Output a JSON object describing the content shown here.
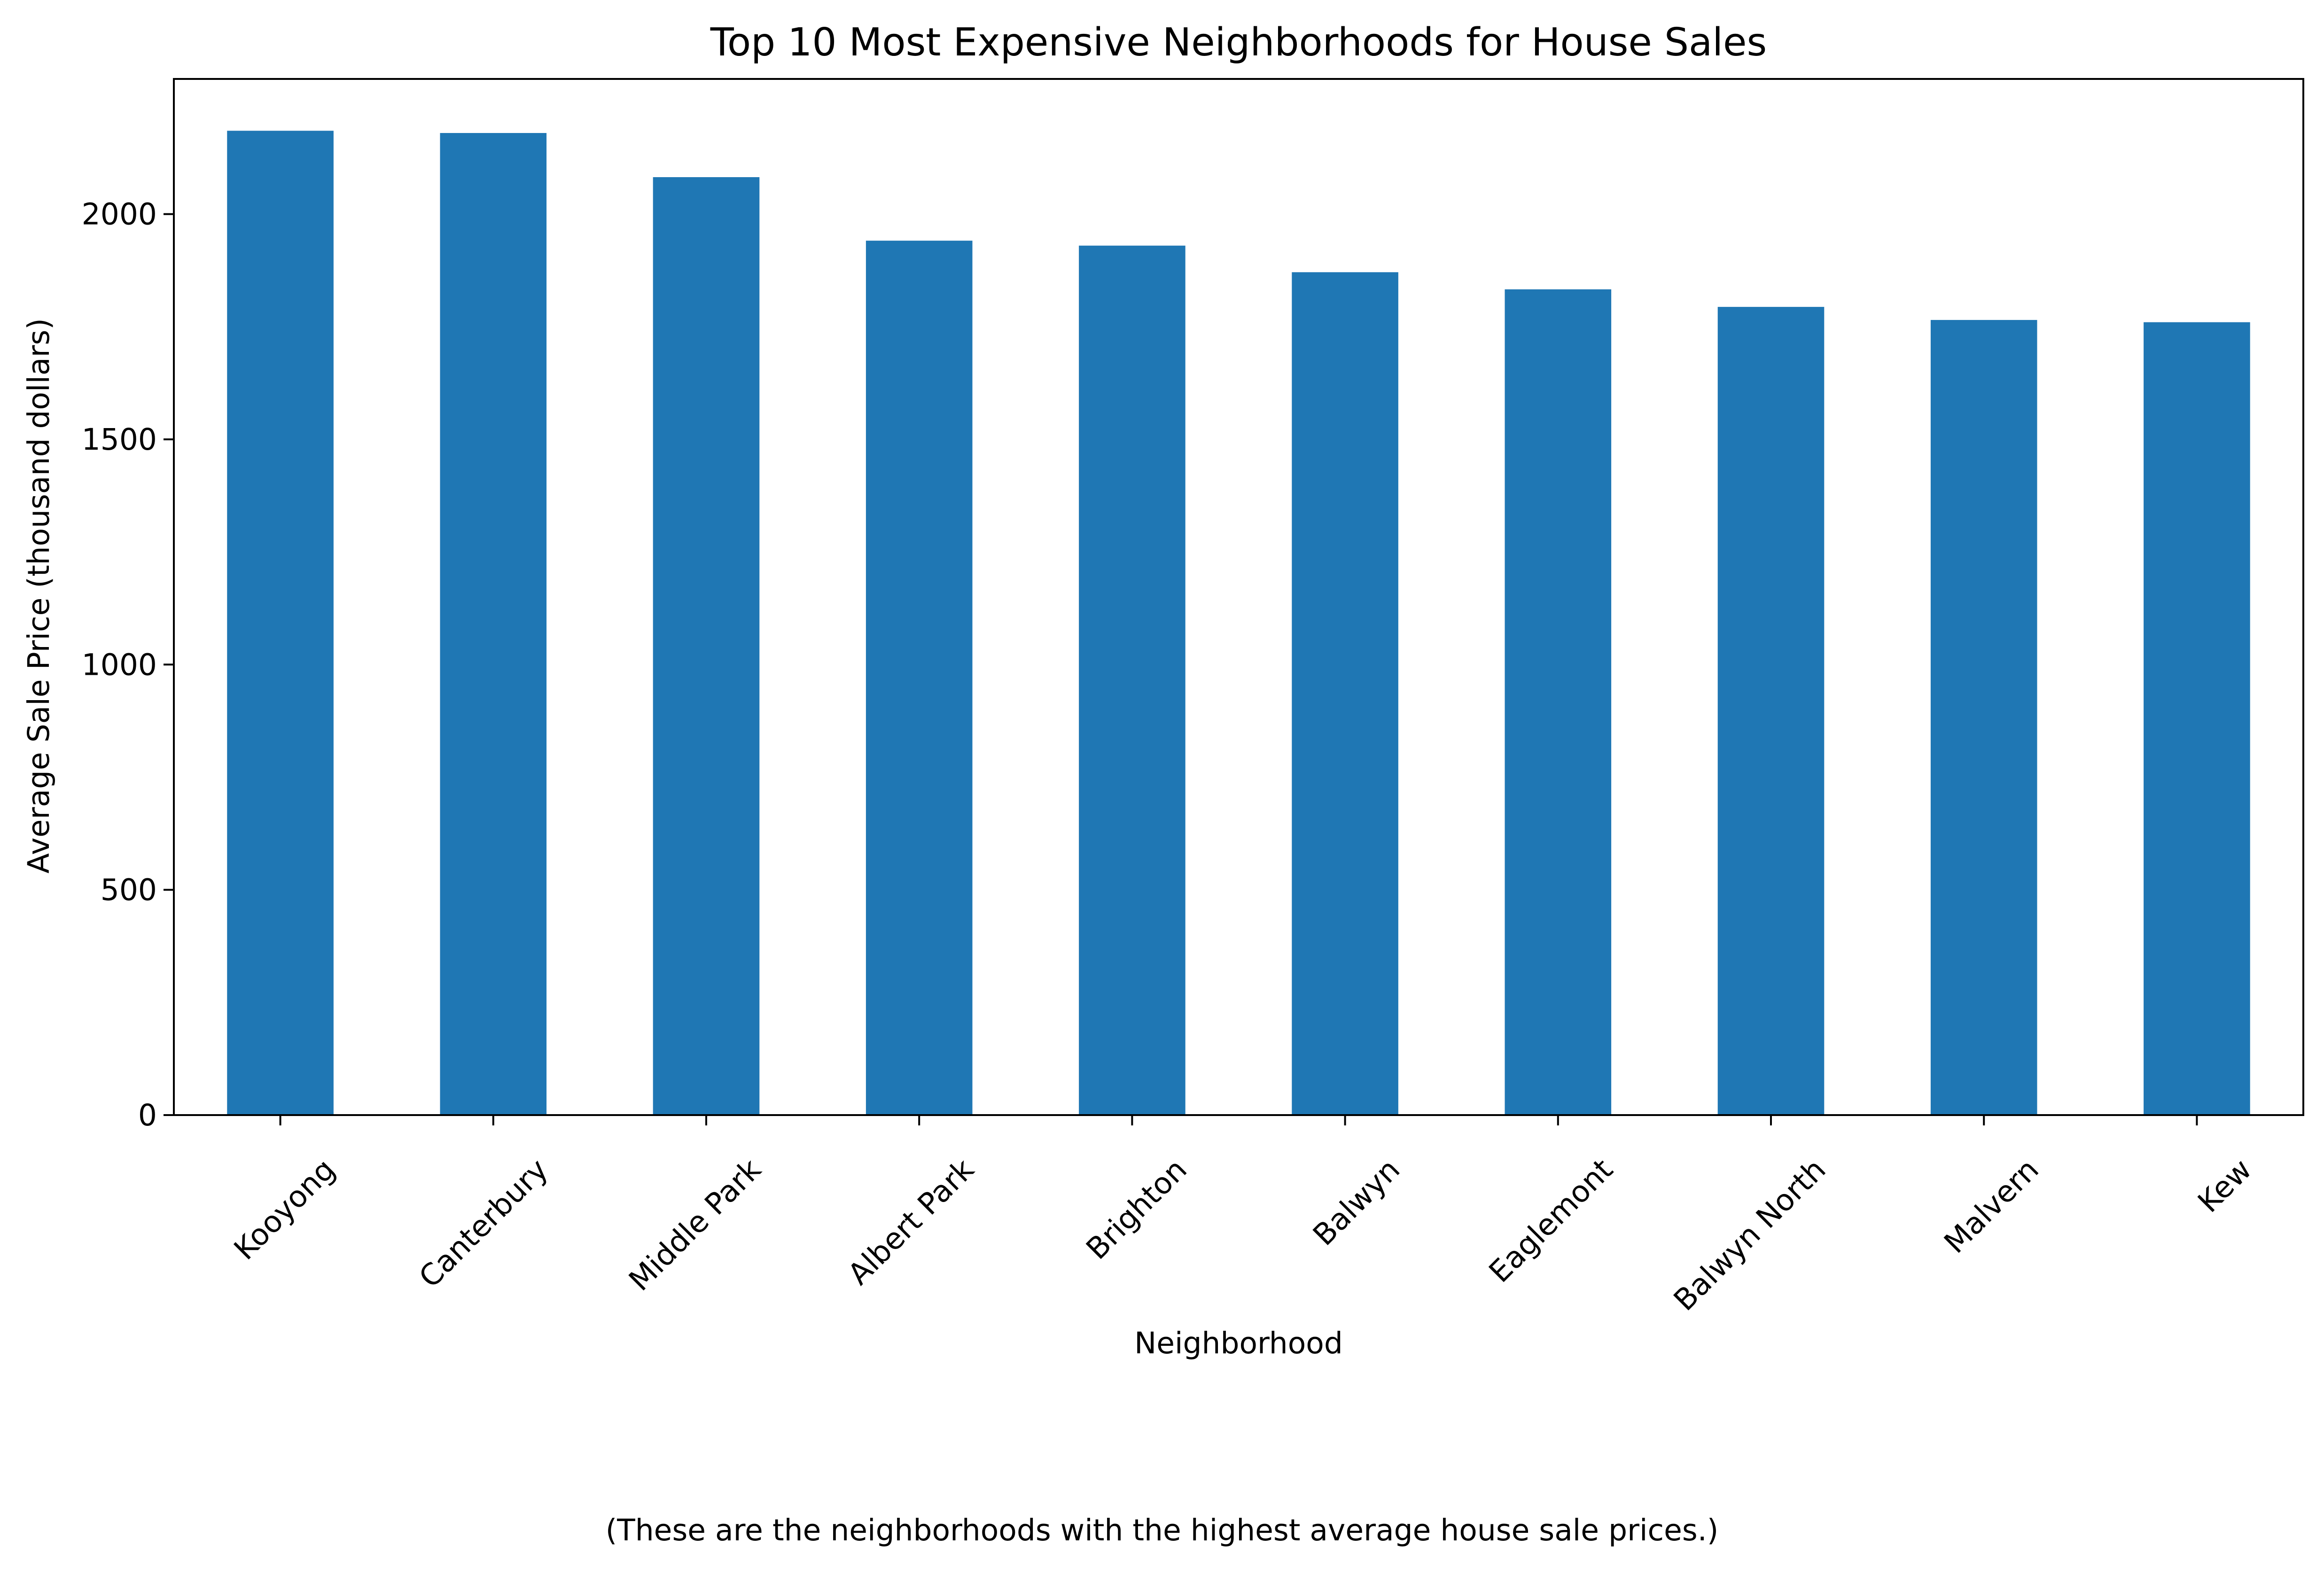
{
  "chart_data": {
    "type": "bar",
    "title": "Top 10 Most Expensive Neighborhoods for House Sales",
    "xlabel": "Neighborhood",
    "ylabel": "Average Sale Price (thousand dollars)",
    "caption": "(These are the neighborhoods with the highest average house sale prices.)",
    "categories": [
      "Kooyong",
      "Canterbury",
      "Middle Park",
      "Albert Park",
      "Brighton",
      "Balwyn",
      "Eaglemont",
      "Balwyn North",
      "Malvern",
      "Kew"
    ],
    "values": [
      2185,
      2180,
      2082,
      1941,
      1930,
      1871,
      1833,
      1794,
      1765,
      1760
    ],
    "ylim": [
      0,
      2300
    ],
    "yticks": [
      0,
      500,
      1000,
      1500,
      2000
    ],
    "bar_color": "#1f77b4",
    "grid": false,
    "legend": "none"
  }
}
